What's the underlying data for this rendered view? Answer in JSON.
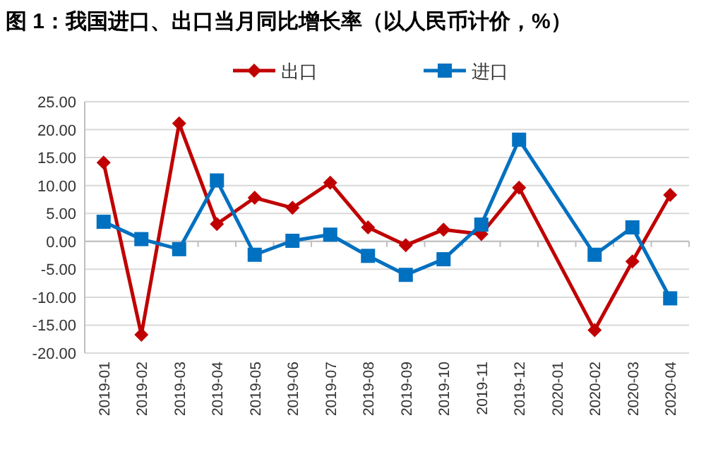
{
  "chart_data": {
    "type": "line",
    "title": "图 1：我国进口、出口当月同比增长率（以人民币计价，%）",
    "categories": [
      "2019-01",
      "2019-02",
      "2019-03",
      "2019-04",
      "2019-05",
      "2019-06",
      "2019-07",
      "2019-08",
      "2019-09",
      "2019-10",
      "2019-11",
      "2019-12",
      "2020-01",
      "2020-02",
      "2020-03",
      "2020-04"
    ],
    "series": [
      {
        "name": "出口",
        "color": "#c00000",
        "marker": "diamond",
        "values": [
          14.1,
          -16.7,
          21.1,
          3.1,
          7.8,
          6.0,
          10.5,
          2.5,
          -0.7,
          2.1,
          1.3,
          9.6,
          null,
          -15.9,
          -3.6,
          8.3
        ]
      },
      {
        "name": "进口",
        "color": "#0070c0",
        "marker": "square",
        "values": [
          3.5,
          0.4,
          -1.4,
          10.9,
          -2.4,
          0.1,
          1.2,
          -2.6,
          -6.0,
          -3.2,
          3.0,
          18.2,
          null,
          -2.4,
          2.5,
          -10.2
        ]
      }
    ],
    "ylim": [
      -20,
      25
    ],
    "yticks": [
      {
        "value": 25,
        "label": "25.00"
      },
      {
        "value": 20,
        "label": "20.00"
      },
      {
        "value": 15,
        "label": "15.00"
      },
      {
        "value": 10,
        "label": "10.00"
      },
      {
        "value": 5,
        "label": "5.00"
      },
      {
        "value": 0,
        "label": "0.00"
      },
      {
        "value": -5,
        "label": "-5.00"
      },
      {
        "value": -10,
        "label": "-10.00"
      },
      {
        "value": -15,
        "label": "-15.00"
      },
      {
        "value": -20,
        "label": "-20.00"
      }
    ],
    "grid": "y",
    "legend": "top",
    "line_style": "solid"
  }
}
